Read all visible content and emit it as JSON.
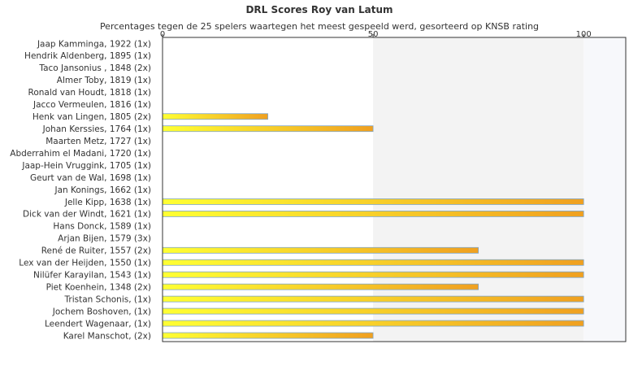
{
  "chart_data": {
    "type": "bar",
    "orientation": "horizontal",
    "title": "DRL Scores Roy van Latum",
    "subtitle": "Percentages tegen de 25 spelers waartegen het meest gespeeld werd, gesorteerd op KNSB rating",
    "xlim": [
      0,
      110
    ],
    "xticks": [
      0,
      50,
      100
    ],
    "grid": "vertical bands",
    "categories": [
      "Jaap Kamminga, 1922 (1x)",
      "Hendrik Aldenberg, 1895 (1x)",
      "Taco Jansonius , 1848 (2x)",
      "Almer Toby, 1819 (1x)",
      "Ronald van Houdt, 1818 (1x)",
      "Jacco Vermeulen, 1816 (1x)",
      "Henk van Lingen, 1805 (2x)",
      "Johan Kerssies, 1764 (1x)",
      "Maarten Metz, 1727 (1x)",
      "Abderrahim el Madani, 1720 (1x)",
      "Jaap-Hein Vruggink, 1705 (1x)",
      "Geurt van de Wal, 1698 (1x)",
      "Jan Konings, 1662 (1x)",
      "Jelle Kipp, 1638 (1x)",
      "Dick van der Windt, 1621 (1x)",
      "Hans Donck, 1589 (1x)",
      "Arjan Bijen, 1579 (3x)",
      "René de Ruiter, 1557 (2x)",
      "Lex van der Heijden, 1550 (1x)",
      "Nilüfer Karayilan, 1543 (1x)",
      "Piet Koenhein, 1348 (2x)",
      "Tristan Schonis,  (1x)",
      "Jochem Boshoven,  (1x)",
      "Leendert Wagenaar,  (1x)",
      "Karel Manschot,  (2x)"
    ],
    "values": [
      0,
      0,
      0,
      0,
      0,
      0,
      25,
      50,
      0,
      0,
      0,
      0,
      0,
      100,
      100,
      0,
      0,
      75,
      100,
      100,
      75,
      100,
      100,
      100,
      50
    ],
    "colors": {
      "bar_start": "#ffff33",
      "bar_end": "#f0a020",
      "bar_border": "#7fa6c8",
      "band": "#f3f3f3",
      "band_light": "#f7f8fb",
      "axis": "#333333"
    }
  }
}
